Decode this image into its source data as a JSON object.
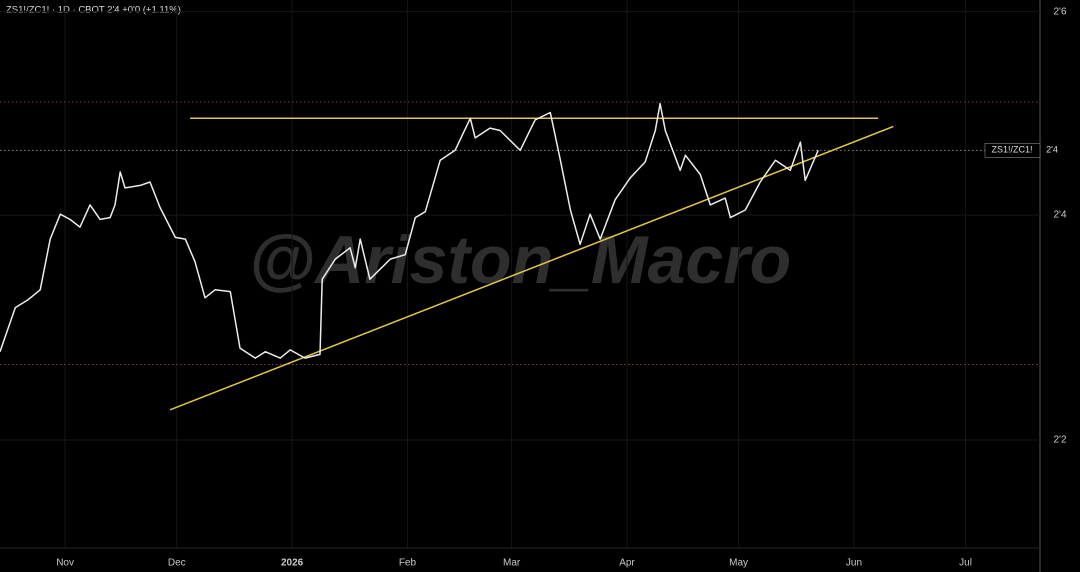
{
  "chart_data": {
    "type": "line",
    "title": "ZS1!/ZC1! · 1D · CBOT  2'4  +0'0 (+1.11%)",
    "watermark": "@Ariston_Macro",
    "log_scale": true,
    "ylim": [
      2.139,
      2.765
    ],
    "yticks": [
      {
        "value": 2.75,
        "label": "2'6"
      },
      {
        "value": 2.5,
        "label": "2'4"
      },
      {
        "value": 2.25,
        "label": "2'2"
      }
    ],
    "xlim": [
      -17.5,
      262
    ],
    "xticks": [
      {
        "value": 0,
        "label": "Nov"
      },
      {
        "value": 30,
        "label": "Dec"
      },
      {
        "value": 61,
        "label": "2026"
      },
      {
        "value": 92,
        "label": "Feb"
      },
      {
        "value": 120,
        "label": "Mar"
      },
      {
        "value": 151,
        "label": "Apr"
      },
      {
        "value": 181,
        "label": "May"
      },
      {
        "value": 212,
        "label": "Jun"
      },
      {
        "value": 242,
        "label": "Jul"
      }
    ],
    "grid": true,
    "series": [
      {
        "name": "ZS1!/ZC1!",
        "color": "#ececec",
        "x": [
          -17.5,
          -13.4,
          -9.9,
          -6.7,
          -4.0,
          -1.3,
          1.3,
          4.0,
          6.7,
          9.4,
          12.1,
          13.4,
          14.8,
          16.1,
          20.2,
          22.8,
          25.5,
          29.6,
          32.3,
          34.9,
          37.6,
          40.3,
          44.4,
          47.0,
          51.1,
          53.8,
          57.8,
          60.5,
          64.5,
          68.5,
          69.1,
          72.6,
          76.6,
          78.0,
          79.3,
          81.9,
          87.4,
          91.4,
          94.1,
          96.8,
          100.8,
          104.8,
          108.9,
          110.2,
          114.2,
          116.9,
          122.3,
          126.3,
          130.4,
          133.1,
          135.8,
          138.4,
          141.1,
          143.8,
          147.8,
          151.9,
          155.9,
          158.6,
          159.9,
          161.3,
          165.3,
          166.7,
          170.7,
          173.4,
          177.4,
          178.8,
          182.8,
          186.8,
          190.9,
          194.9,
          197.6,
          198.9,
          202.4
        ],
        "values": [
          2.345,
          2.394,
          2.403,
          2.414,
          2.472,
          2.501,
          2.495,
          2.486,
          2.512,
          2.495,
          2.497,
          2.512,
          2.551,
          2.532,
          2.535,
          2.539,
          2.509,
          2.474,
          2.472,
          2.446,
          2.405,
          2.414,
          2.412,
          2.349,
          2.338,
          2.345,
          2.338,
          2.347,
          2.338,
          2.342,
          2.426,
          2.449,
          2.462,
          2.439,
          2.472,
          2.426,
          2.449,
          2.454,
          2.497,
          2.504,
          2.565,
          2.577,
          2.616,
          2.592,
          2.604,
          2.601,
          2.577,
          2.614,
          2.623,
          2.565,
          2.506,
          2.466,
          2.501,
          2.472,
          2.518,
          2.544,
          2.563,
          2.601,
          2.634,
          2.601,
          2.553,
          2.571,
          2.548,
          2.512,
          2.52,
          2.497,
          2.506,
          2.539,
          2.565,
          2.553,
          2.587,
          2.541,
          2.577
        ]
      }
    ],
    "last_price": {
      "value": 2.577,
      "label": "2'4"
    },
    "reference_lines": {
      "color": "#8a3434",
      "values": [
        2.636,
        2.331
      ]
    },
    "trendlines": {
      "color": "#e2c64a",
      "lines": [
        {
          "x": [
            33.6,
            218.5
          ],
          "values": [
            2.616,
            2.616
          ]
        },
        {
          "x": [
            28.2,
            222.6
          ],
          "values": [
            2.282,
            2.606
          ]
        }
      ]
    }
  }
}
